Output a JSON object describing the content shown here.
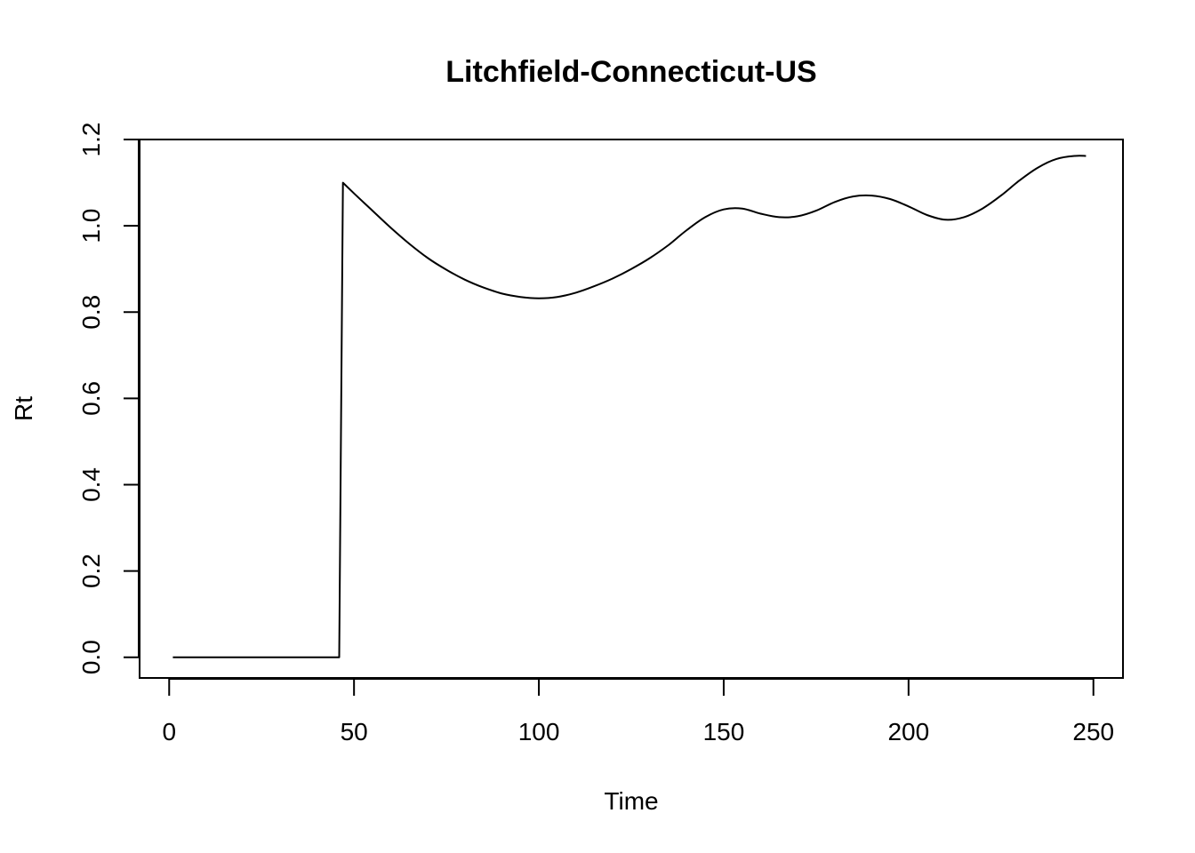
{
  "chart_data": {
    "type": "line",
    "title": "Litchfield-Connecticut-US",
    "xlabel": "Time",
    "ylabel": "Rt",
    "xlim": [
      -8,
      258
    ],
    "ylim": [
      -0.048,
      1.2
    ],
    "x_ticks": [
      0,
      50,
      100,
      150,
      200,
      250
    ],
    "x_tick_labels": [
      "0",
      "50",
      "100",
      "150",
      "200",
      "250"
    ],
    "y_ticks": [
      0.0,
      0.2,
      0.4,
      0.6,
      0.8,
      1.0,
      1.2
    ],
    "y_tick_labels": [
      "0.0",
      "0.2",
      "0.4",
      "0.6",
      "0.8",
      "1.0",
      "1.2"
    ],
    "grid": false,
    "line_color": "#000000",
    "series": [
      {
        "x": [
          1,
          10,
          20,
          30,
          40,
          46,
          47,
          50,
          55,
          60,
          65,
          70,
          75,
          80,
          85,
          90,
          95,
          100,
          105,
          110,
          115,
          120,
          125,
          130,
          135,
          140,
          145,
          150,
          155,
          160,
          165,
          170,
          175,
          180,
          185,
          190,
          195,
          200,
          205,
          210,
          215,
          220,
          225,
          230,
          235,
          240,
          245,
          248
        ],
        "y": [
          0.0,
          0.0,
          0.0,
          0.0,
          0.0,
          0.0,
          1.1,
          1.075,
          1.035,
          0.995,
          0.958,
          0.925,
          0.898,
          0.875,
          0.857,
          0.843,
          0.835,
          0.832,
          0.835,
          0.845,
          0.86,
          0.878,
          0.9,
          0.925,
          0.955,
          0.99,
          1.02,
          1.038,
          1.04,
          1.028,
          1.02,
          1.022,
          1.035,
          1.055,
          1.068,
          1.07,
          1.062,
          1.045,
          1.025,
          1.014,
          1.02,
          1.04,
          1.07,
          1.105,
          1.135,
          1.155,
          1.162,
          1.162
        ]
      }
    ]
  }
}
